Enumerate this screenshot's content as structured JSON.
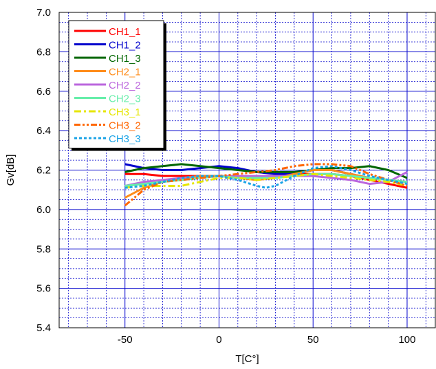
{
  "chart_data": {
    "type": "line",
    "xlabel": "T[C°]",
    "ylabel": "Gv[dB]",
    "xlim": [
      -85,
      115
    ],
    "ylim": [
      5.4,
      7.0
    ],
    "x_ticks": [
      -50,
      0,
      50,
      100
    ],
    "y_ticks": [
      5.4,
      5.6,
      5.8,
      6.0,
      6.2,
      6.4,
      6.6,
      6.8,
      7.0
    ],
    "x_tick_labels": [
      "-50",
      "0",
      "50",
      "100"
    ],
    "y_tick_labels": [
      "5.4",
      "5.6",
      "5.8",
      "6.0",
      "6.2",
      "6.4",
      "6.6",
      "6.8",
      "7.0"
    ],
    "grid": true,
    "legend_position": "top-left",
    "series": [
      {
        "name": "CH1_1",
        "color": "#ff0000",
        "dash": "solid",
        "points": [
          [
            -50,
            6.18
          ],
          [
            -40,
            6.18
          ],
          [
            -30,
            6.17
          ],
          [
            -20,
            6.17
          ],
          [
            -10,
            6.17
          ],
          [
            0,
            6.17
          ],
          [
            10,
            6.16
          ],
          [
            20,
            6.16
          ],
          [
            30,
            6.17
          ],
          [
            40,
            6.18
          ],
          [
            50,
            6.18
          ],
          [
            60,
            6.18
          ],
          [
            70,
            6.17
          ],
          [
            80,
            6.15
          ],
          [
            90,
            6.13
          ],
          [
            100,
            6.11
          ]
        ]
      },
      {
        "name": "CH1_2",
        "color": "#0000cc",
        "dash": "solid",
        "points": [
          [
            -50,
            6.23
          ],
          [
            -40,
            6.21
          ],
          [
            -30,
            6.2
          ],
          [
            -20,
            6.2
          ],
          [
            -10,
            6.21
          ],
          [
            0,
            6.22
          ],
          [
            10,
            6.21
          ],
          [
            20,
            6.19
          ],
          [
            30,
            6.18
          ],
          [
            40,
            6.18
          ],
          [
            50,
            6.2
          ],
          [
            60,
            6.2
          ],
          [
            70,
            6.18
          ],
          [
            80,
            6.16
          ],
          [
            90,
            6.15
          ],
          [
            100,
            6.14
          ]
        ]
      },
      {
        "name": "CH1_3",
        "color": "#006600",
        "dash": "solid",
        "points": [
          [
            -50,
            6.19
          ],
          [
            -40,
            6.21
          ],
          [
            -30,
            6.22
          ],
          [
            -20,
            6.23
          ],
          [
            -10,
            6.22
          ],
          [
            0,
            6.21
          ],
          [
            10,
            6.2
          ],
          [
            20,
            6.19
          ],
          [
            30,
            6.19
          ],
          [
            40,
            6.19
          ],
          [
            50,
            6.2
          ],
          [
            60,
            6.21
          ],
          [
            70,
            6.21
          ],
          [
            80,
            6.22
          ],
          [
            90,
            6.2
          ],
          [
            100,
            6.16
          ]
        ]
      },
      {
        "name": "CH2_1",
        "color": "#ff8c1a",
        "dash": "solid",
        "points": [
          [
            -50,
            6.06
          ],
          [
            -40,
            6.11
          ],
          [
            -30,
            6.14
          ],
          [
            -20,
            6.16
          ],
          [
            -10,
            6.17
          ],
          [
            0,
            6.17
          ],
          [
            10,
            6.16
          ],
          [
            20,
            6.15
          ],
          [
            30,
            6.16
          ],
          [
            40,
            6.18
          ],
          [
            50,
            6.2
          ],
          [
            60,
            6.2
          ],
          [
            70,
            6.18
          ],
          [
            80,
            6.16
          ],
          [
            90,
            6.15
          ],
          [
            100,
            6.14
          ]
        ]
      },
      {
        "name": "CH2_2",
        "color": "#bb66dd",
        "dash": "solid",
        "points": [
          [
            -50,
            6.12
          ],
          [
            -40,
            6.14
          ],
          [
            -30,
            6.15
          ],
          [
            -20,
            6.16
          ],
          [
            -10,
            6.16
          ],
          [
            0,
            6.17
          ],
          [
            10,
            6.17
          ],
          [
            20,
            6.17
          ],
          [
            30,
            6.17
          ],
          [
            40,
            6.17
          ],
          [
            50,
            6.17
          ],
          [
            60,
            6.16
          ],
          [
            70,
            6.15
          ],
          [
            80,
            6.13
          ],
          [
            90,
            6.14
          ],
          [
            100,
            6.19
          ]
        ]
      },
      {
        "name": "CH2_3",
        "color": "#66eeaa",
        "dash": "solid",
        "points": [
          [
            -50,
            6.12
          ],
          [
            -40,
            6.13
          ],
          [
            -30,
            6.14
          ],
          [
            -20,
            6.15
          ],
          [
            -10,
            6.16
          ],
          [
            0,
            6.17
          ],
          [
            10,
            6.16
          ],
          [
            20,
            6.16
          ],
          [
            30,
            6.16
          ],
          [
            40,
            6.17
          ],
          [
            50,
            6.18
          ],
          [
            60,
            6.18
          ],
          [
            70,
            6.17
          ],
          [
            80,
            6.16
          ],
          [
            90,
            6.15
          ],
          [
            100,
            6.14
          ]
        ]
      },
      {
        "name": "CH3_1",
        "color": "#e6e600",
        "dash": "dashdot",
        "points": [
          [
            -50,
            6.11
          ],
          [
            -40,
            6.12
          ],
          [
            -30,
            6.12
          ],
          [
            -20,
            6.12
          ],
          [
            -10,
            6.14
          ],
          [
            0,
            6.16
          ],
          [
            10,
            6.16
          ],
          [
            20,
            6.15
          ],
          [
            30,
            6.16
          ],
          [
            40,
            6.17
          ],
          [
            50,
            6.18
          ],
          [
            60,
            6.17
          ],
          [
            70,
            6.16
          ],
          [
            80,
            6.15
          ],
          [
            90,
            6.14
          ],
          [
            100,
            6.12
          ]
        ]
      },
      {
        "name": "CH3_2",
        "color": "#ff6600",
        "dash": "dashdotdot",
        "points": [
          [
            -50,
            6.02
          ],
          [
            -45,
            6.06
          ],
          [
            -40,
            6.1
          ],
          [
            -30,
            6.14
          ],
          [
            -20,
            6.15
          ],
          [
            -10,
            6.16
          ],
          [
            0,
            6.17
          ],
          [
            10,
            6.18
          ],
          [
            20,
            6.19
          ],
          [
            30,
            6.2
          ],
          [
            40,
            6.22
          ],
          [
            50,
            6.23
          ],
          [
            60,
            6.23
          ],
          [
            70,
            6.22
          ],
          [
            80,
            6.18
          ],
          [
            90,
            6.15
          ],
          [
            100,
            6.12
          ]
        ]
      },
      {
        "name": "CH3_3",
        "color": "#1aa3e6",
        "dash": "dotted",
        "points": [
          [
            -50,
            6.11
          ],
          [
            -40,
            6.12
          ],
          [
            -30,
            6.14
          ],
          [
            -20,
            6.16
          ],
          [
            -10,
            6.17
          ],
          [
            0,
            6.17
          ],
          [
            10,
            6.15
          ],
          [
            20,
            6.12
          ],
          [
            25,
            6.11
          ],
          [
            30,
            6.12
          ],
          [
            40,
            6.17
          ],
          [
            50,
            6.21
          ],
          [
            60,
            6.22
          ],
          [
            70,
            6.2
          ],
          [
            80,
            6.17
          ],
          [
            90,
            6.15
          ],
          [
            100,
            6.13
          ]
        ]
      }
    ]
  }
}
